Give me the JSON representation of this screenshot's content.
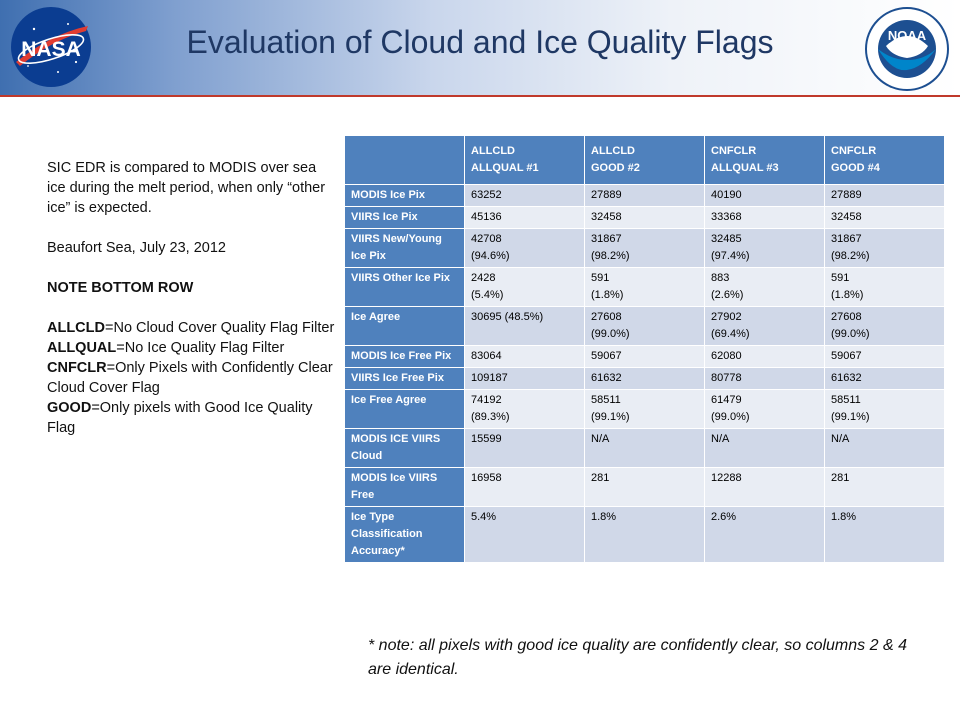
{
  "header": {
    "title": "Evaluation of Cloud and Ice Quality Flags",
    "nasa_logo_text": "NASA",
    "noaa_logo_text": "NOAA"
  },
  "left_panel": {
    "intro": "SIC EDR is compared to MODIS over sea ice during the melt period, when only “other ice” is expected.",
    "location": "Beaufort Sea, July 23, 2012",
    "note_heading": "NOTE BOTTOM ROW",
    "definitions": [
      {
        "term": "ALLCLD",
        "desc": "=No Cloud Cover Quality Flag Filter"
      },
      {
        "term": "ALLQUAL",
        "desc": "=No Ice Quality Flag Filter"
      },
      {
        "term": "CNFCLR",
        "desc": "=Only Pixels with Confidently Clear Cloud Cover Flag"
      },
      {
        "term": "GOOD",
        "desc": "=Only pixels with Good Ice Quality Flag"
      }
    ]
  },
  "table": {
    "columns": [
      {
        "line1": "ALLCLD",
        "line2": "ALLQUAL  #1"
      },
      {
        "line1": "ALLCLD",
        "line2": "GOOD  #2"
      },
      {
        "line1": "CNFCLR",
        "line2": "ALLQUAL  #3"
      },
      {
        "line1": "CNFCLR",
        "line2": "GOOD  #4"
      }
    ],
    "rows": [
      {
        "label": "MODIS Ice Pix",
        "cells": [
          [
            "63252"
          ],
          [
            "27889"
          ],
          [
            "40190"
          ],
          [
            "27889"
          ]
        ]
      },
      {
        "label": "VIIRS Ice Pix",
        "cells": [
          [
            "45136"
          ],
          [
            "32458"
          ],
          [
            "33368"
          ],
          [
            "32458"
          ]
        ]
      },
      {
        "label": "VIIRS New/Young Ice Pix",
        "cells": [
          [
            "42708",
            "(94.6%)"
          ],
          [
            "31867",
            "(98.2%)"
          ],
          [
            "32485",
            "(97.4%)"
          ],
          [
            "31867",
            "(98.2%)"
          ]
        ]
      },
      {
        "label": "VIIRS Other Ice Pix",
        "cells": [
          [
            "2428",
            "(5.4%)"
          ],
          [
            "591",
            "(1.8%)"
          ],
          [
            "883",
            "(2.6%)"
          ],
          [
            "591",
            "(1.8%)"
          ]
        ]
      },
      {
        "label": "Ice Agree",
        "cells": [
          [
            "30695 (48.5%)"
          ],
          [
            "27608",
            "(99.0%)"
          ],
          [
            "27902",
            "(69.4%)"
          ],
          [
            "27608",
            "(99.0%)"
          ]
        ]
      },
      {
        "label": "MODIS Ice Free Pix",
        "cells": [
          [
            "83064"
          ],
          [
            "59067"
          ],
          [
            "62080"
          ],
          [
            "59067"
          ]
        ]
      },
      {
        "label": "VIIRS Ice Free Pix",
        "cells": [
          [
            "109187"
          ],
          [
            "61632"
          ],
          [
            "80778"
          ],
          [
            "61632"
          ]
        ]
      },
      {
        "label": "Ice Free Agree",
        "cells": [
          [
            "74192",
            "(89.3%)"
          ],
          [
            "58511",
            "(99.1%)"
          ],
          [
            "61479",
            "(99.0%)"
          ],
          [
            "58511",
            "(99.1%)"
          ]
        ]
      },
      {
        "label": "MODIS ICE VIIRS Cloud",
        "cells": [
          [
            "15599"
          ],
          [
            "N/A"
          ],
          [
            "N/A"
          ],
          [
            "N/A"
          ]
        ]
      },
      {
        "label": "MODIS Ice VIIRS Free",
        "cells": [
          [
            "16958"
          ],
          [
            "281"
          ],
          [
            "12288"
          ],
          [
            "281"
          ]
        ]
      },
      {
        "label": "Ice Type Classification Accuracy*",
        "cells": [
          [
            "5.4%"
          ],
          [
            "1.8%"
          ],
          [
            "2.6%"
          ],
          [
            "1.8%"
          ]
        ]
      }
    ]
  },
  "footnote": "* note: all pixels with good ice quality are confidently clear, so columns 2 & 4 are identical."
}
